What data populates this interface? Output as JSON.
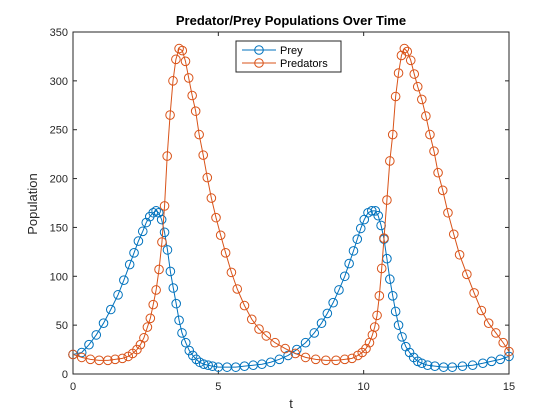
{
  "chart_data": {
    "type": "line",
    "title": "Predator/Prey Populations Over Time",
    "xlabel": "t",
    "ylabel": "Population",
    "xlim": [
      0,
      15
    ],
    "ylim": [
      0,
      350
    ],
    "xticks": [
      0,
      5,
      10,
      15
    ],
    "yticks": [
      0,
      50,
      100,
      150,
      200,
      250,
      300,
      350
    ],
    "grid": false,
    "box": true,
    "legend_position": "top-center",
    "series": [
      {
        "name": "Prey",
        "color": "#0072BD",
        "marker": "circle",
        "points": [
          [
            0.0,
            20
          ],
          [
            0.3,
            22
          ],
          [
            0.55,
            30
          ],
          [
            0.8,
            40
          ],
          [
            1.05,
            52
          ],
          [
            1.3,
            66
          ],
          [
            1.55,
            81
          ],
          [
            1.75,
            96
          ],
          [
            1.95,
            112
          ],
          [
            2.1,
            124
          ],
          [
            2.25,
            136
          ],
          [
            2.4,
            146
          ],
          [
            2.52,
            155
          ],
          [
            2.64,
            161
          ],
          [
            2.76,
            165
          ],
          [
            2.86,
            167
          ],
          [
            2.95,
            165
          ],
          [
            3.05,
            158
          ],
          [
            3.15,
            145
          ],
          [
            3.25,
            127
          ],
          [
            3.35,
            105
          ],
          [
            3.45,
            88
          ],
          [
            3.55,
            72
          ],
          [
            3.65,
            55
          ],
          [
            3.75,
            42
          ],
          [
            3.88,
            32
          ],
          [
            4.0,
            24
          ],
          [
            4.12,
            19
          ],
          [
            4.24,
            15
          ],
          [
            4.36,
            12
          ],
          [
            4.5,
            10
          ],
          [
            4.65,
            9
          ],
          [
            4.8,
            8
          ],
          [
            5.0,
            7
          ],
          [
            5.3,
            7
          ],
          [
            5.6,
            7
          ],
          [
            5.9,
            8
          ],
          [
            6.2,
            9
          ],
          [
            6.5,
            10
          ],
          [
            6.8,
            12
          ],
          [
            7.1,
            15
          ],
          [
            7.4,
            19
          ],
          [
            7.7,
            25
          ],
          [
            8.0,
            32
          ],
          [
            8.3,
            42
          ],
          [
            8.55,
            52
          ],
          [
            8.75,
            62
          ],
          [
            8.95,
            73
          ],
          [
            9.15,
            86
          ],
          [
            9.35,
            100
          ],
          [
            9.5,
            113
          ],
          [
            9.65,
            126
          ],
          [
            9.78,
            138
          ],
          [
            9.9,
            149
          ],
          [
            10.02,
            158
          ],
          [
            10.15,
            165
          ],
          [
            10.28,
            167
          ],
          [
            10.4,
            167
          ],
          [
            10.5,
            162
          ],
          [
            10.6,
            152
          ],
          [
            10.7,
            138
          ],
          [
            10.8,
            118
          ],
          [
            10.9,
            97
          ],
          [
            11.0,
            80
          ],
          [
            11.1,
            64
          ],
          [
            11.2,
            50
          ],
          [
            11.32,
            38
          ],
          [
            11.45,
            28
          ],
          [
            11.58,
            22
          ],
          [
            11.72,
            17
          ],
          [
            11.86,
            13
          ],
          [
            12.0,
            11
          ],
          [
            12.2,
            9
          ],
          [
            12.45,
            8
          ],
          [
            12.75,
            7
          ],
          [
            13.05,
            7
          ],
          [
            13.4,
            8
          ],
          [
            13.75,
            9
          ],
          [
            14.1,
            11
          ],
          [
            14.4,
            13
          ],
          [
            14.7,
            15
          ],
          [
            15.0,
            18
          ]
        ]
      },
      {
        "name": "Predators",
        "color": "#D95319",
        "marker": "circle",
        "points": [
          [
            0.0,
            20
          ],
          [
            0.3,
            17
          ],
          [
            0.6,
            15
          ],
          [
            0.9,
            14
          ],
          [
            1.2,
            14
          ],
          [
            1.45,
            15
          ],
          [
            1.7,
            16
          ],
          [
            1.9,
            18
          ],
          [
            2.05,
            21
          ],
          [
            2.2,
            25
          ],
          [
            2.32,
            30
          ],
          [
            2.44,
            37
          ],
          [
            2.56,
            48
          ],
          [
            2.66,
            57
          ],
          [
            2.76,
            71
          ],
          [
            2.86,
            86
          ],
          [
            2.96,
            107
          ],
          [
            3.06,
            135
          ],
          [
            3.15,
            172
          ],
          [
            3.24,
            223
          ],
          [
            3.34,
            265
          ],
          [
            3.44,
            300
          ],
          [
            3.54,
            322
          ],
          [
            3.65,
            333
          ],
          [
            3.76,
            331
          ],
          [
            3.87,
            320
          ],
          [
            3.98,
            303
          ],
          [
            4.1,
            285
          ],
          [
            4.22,
            269
          ],
          [
            4.34,
            245
          ],
          [
            4.48,
            224
          ],
          [
            4.62,
            201
          ],
          [
            4.76,
            180
          ],
          [
            4.92,
            160
          ],
          [
            5.08,
            142
          ],
          [
            5.25,
            124
          ],
          [
            5.45,
            104
          ],
          [
            5.65,
            87
          ],
          [
            5.9,
            70
          ],
          [
            6.15,
            56
          ],
          [
            6.4,
            46
          ],
          [
            6.65,
            39
          ],
          [
            6.95,
            32
          ],
          [
            7.3,
            26
          ],
          [
            7.65,
            21
          ],
          [
            8.0,
            17
          ],
          [
            8.35,
            15
          ],
          [
            8.7,
            14
          ],
          [
            9.05,
            14
          ],
          [
            9.35,
            15
          ],
          [
            9.6,
            16
          ],
          [
            9.8,
            19
          ],
          [
            9.95,
            22
          ],
          [
            10.08,
            26
          ],
          [
            10.2,
            32
          ],
          [
            10.3,
            40
          ],
          [
            10.38,
            48
          ],
          [
            10.46,
            60
          ],
          [
            10.54,
            80
          ],
          [
            10.62,
            108
          ],
          [
            10.7,
            139
          ],
          [
            10.8,
            178
          ],
          [
            10.9,
            218
          ],
          [
            11.0,
            245
          ],
          [
            11.1,
            284
          ],
          [
            11.2,
            308
          ],
          [
            11.3,
            326
          ],
          [
            11.4,
            333
          ],
          [
            11.5,
            330
          ],
          [
            11.62,
            321
          ],
          [
            11.74,
            307
          ],
          [
            11.86,
            294
          ],
          [
            12.0,
            281
          ],
          [
            12.14,
            264
          ],
          [
            12.28,
            245
          ],
          [
            12.42,
            228
          ],
          [
            12.56,
            206
          ],
          [
            12.72,
            188
          ],
          [
            12.9,
            165
          ],
          [
            13.1,
            143
          ],
          [
            13.3,
            122
          ],
          [
            13.55,
            102
          ],
          [
            13.8,
            83
          ],
          [
            14.05,
            65
          ],
          [
            14.3,
            52
          ],
          [
            14.55,
            42
          ],
          [
            14.8,
            32
          ],
          [
            15.0,
            23
          ]
        ]
      }
    ]
  }
}
